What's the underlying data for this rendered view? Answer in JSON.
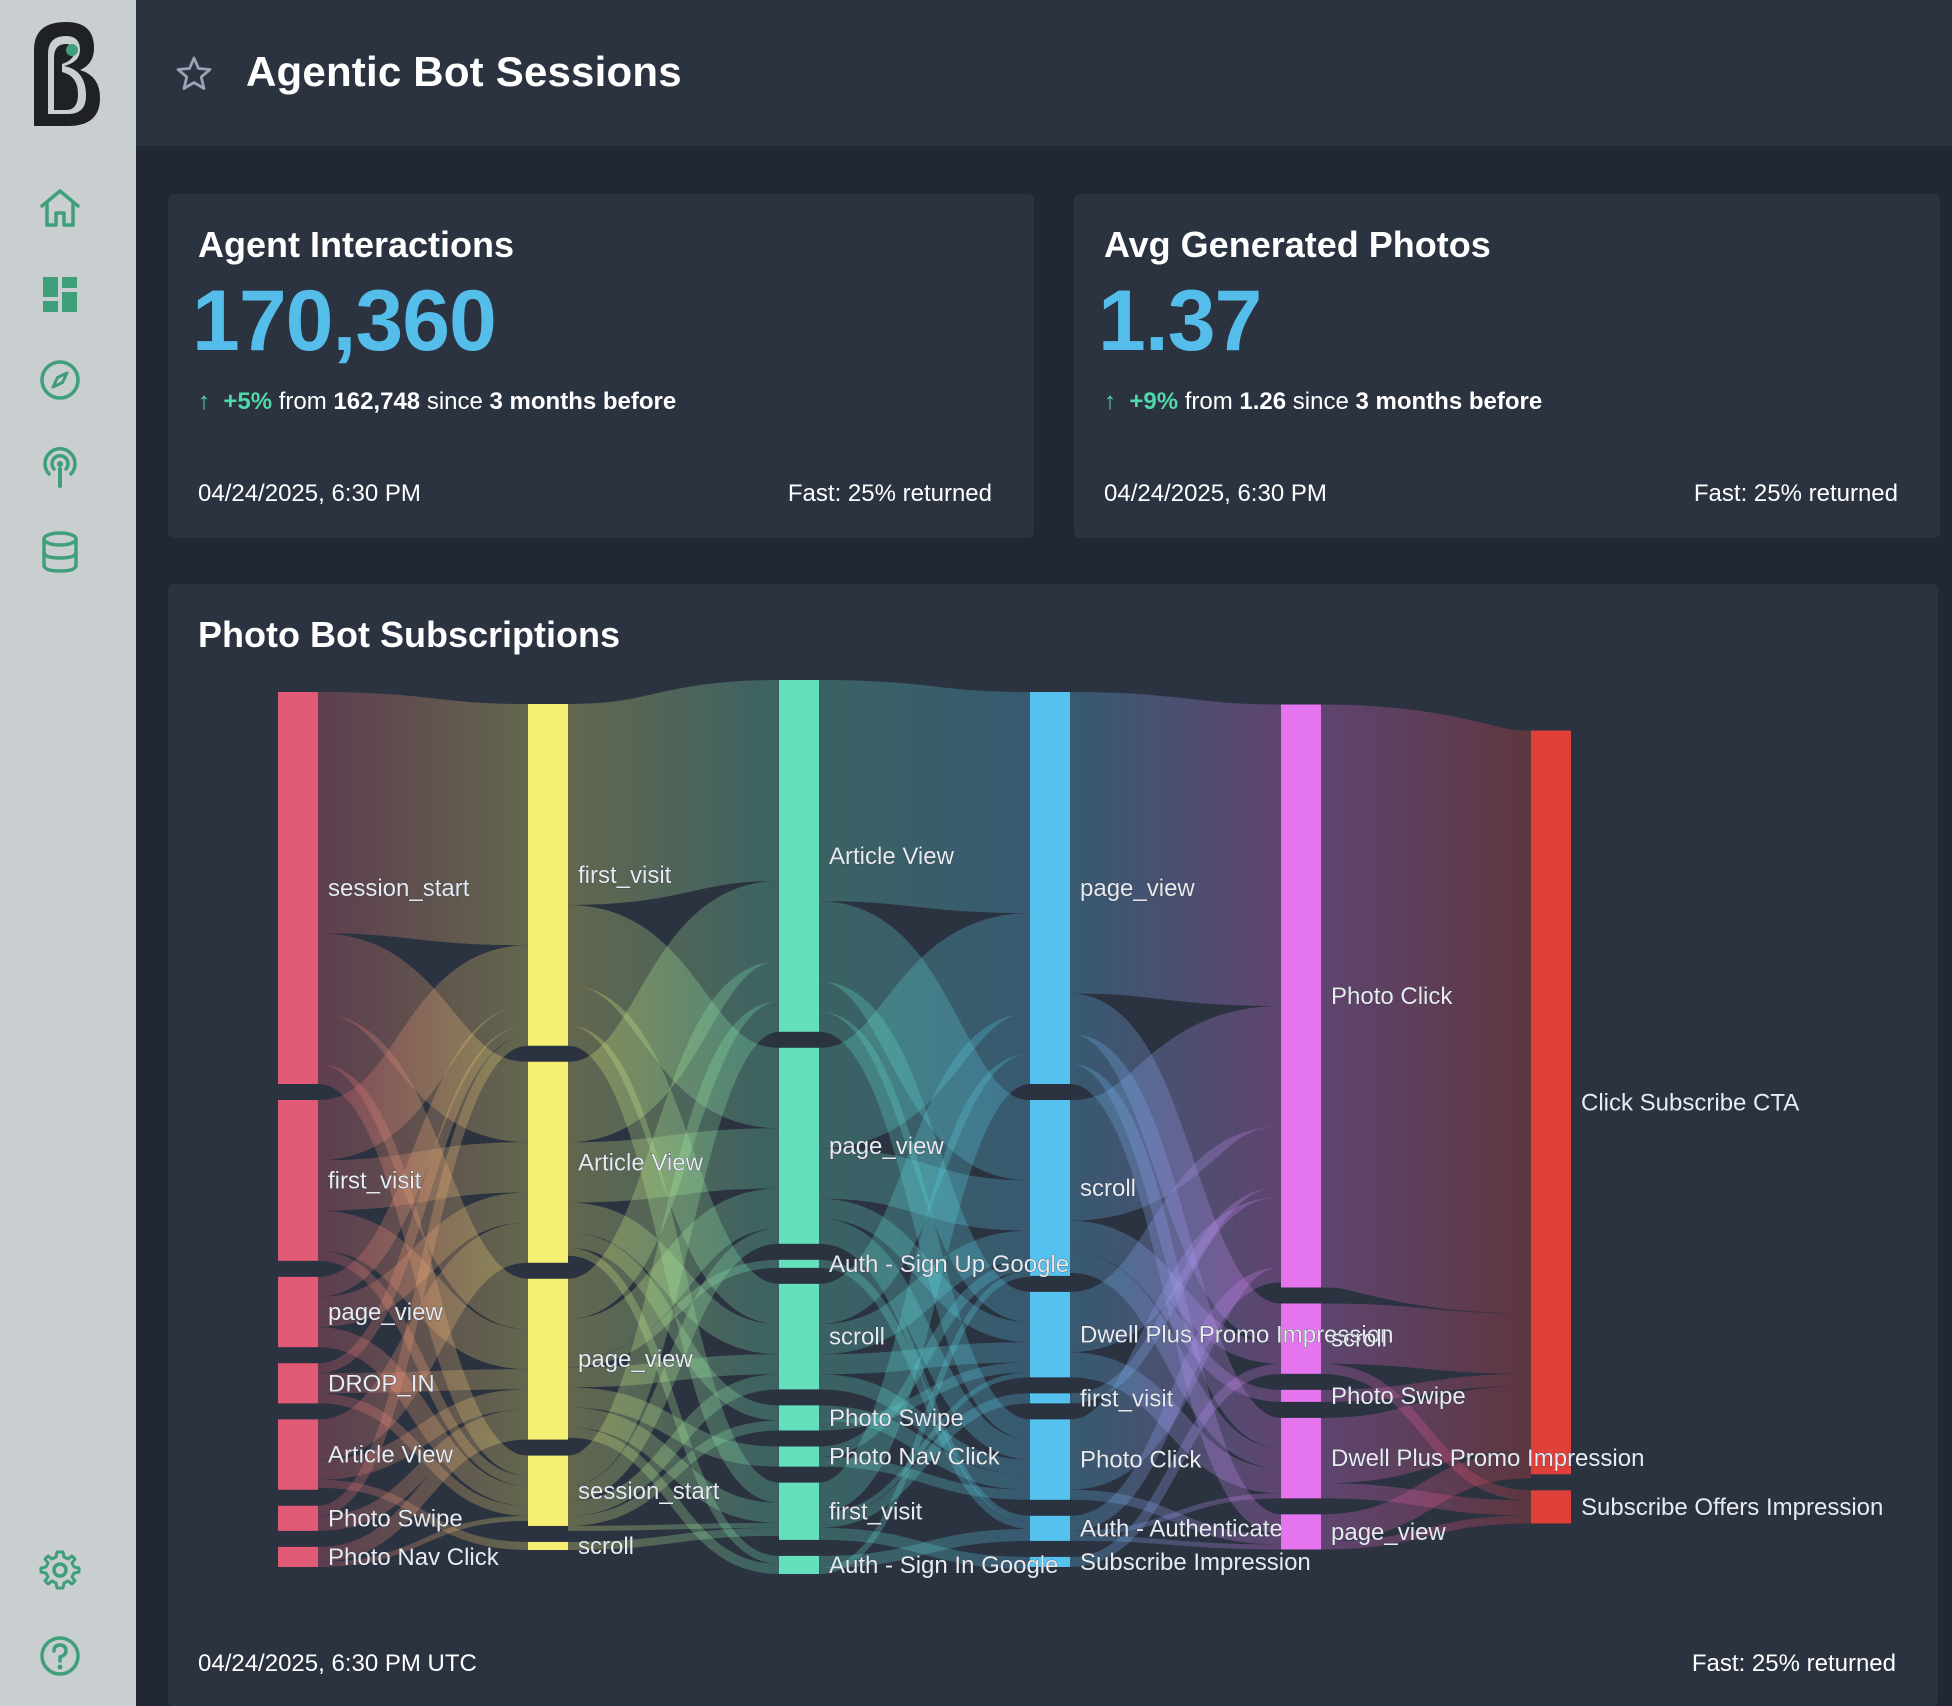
{
  "app": {
    "logo_icon": "brand-logo-icon"
  },
  "header": {
    "title": "Agentic Bot Sessions",
    "star_icon": "star-icon"
  },
  "sidebar": {
    "items": [
      {
        "icon": "home-icon"
      },
      {
        "icon": "dashboard-icon"
      },
      {
        "icon": "compass-icon"
      },
      {
        "icon": "podcast-icon"
      },
      {
        "icon": "database-icon"
      }
    ],
    "bottom": [
      {
        "icon": "gear-icon"
      },
      {
        "icon": "help-icon"
      }
    ]
  },
  "cards": [
    {
      "title": "Agent Interactions",
      "value": "170,360",
      "delta_arrow": "↑",
      "delta_pct": "+5%",
      "from_word": "from",
      "prev_value": "162,748",
      "since_word": "since",
      "period": "3 months before",
      "timestamp": "04/24/2025, 6:30 PM",
      "status": "Fast: 25% returned"
    },
    {
      "title": "Avg Generated Photos",
      "value": "1.37",
      "delta_arrow": "↑",
      "delta_pct": "+9%",
      "from_word": "from",
      "prev_value": "1.26",
      "since_word": "since",
      "period": "3 months before",
      "timestamp": "04/24/2025, 6:30 PM",
      "status": "Fast: 25% returned"
    }
  ],
  "sankey_card": {
    "title": "Photo Bot Subscriptions",
    "timestamp": "04/24/2025, 6:30 PM UTC",
    "status": "Fast: 25% returned"
  },
  "colors": {
    "accent": "#55bde9",
    "positive": "#4fd8a8",
    "sidebar_icon": "#3f9f7a",
    "background": "#212733",
    "panel": "#2b3240"
  },
  "chart_data": {
    "type": "sankey",
    "title": "Photo Bot Subscriptions",
    "columns": [
      [
        {
          "label": "session_start",
          "color": "#e05a76",
          "value": 39
        },
        {
          "label": "first_visit",
          "color": "#e05a76",
          "value": 16
        },
        {
          "label": "page_view",
          "color": "#e05a76",
          "value": 7
        },
        {
          "label": "DROP_IN",
          "color": "#e05a76",
          "value": 4
        },
        {
          "label": "Article View",
          "color": "#e05a76",
          "value": 7
        },
        {
          "label": "Photo Swipe",
          "color": "#e05a76",
          "value": 2.5
        },
        {
          "label": "Photo Nav Click",
          "color": "#e05a76",
          "value": 2
        }
      ],
      [
        {
          "label": "first_visit",
          "color": "#f4ef73",
          "value": 34
        },
        {
          "label": "Article View",
          "color": "#f4ef73",
          "value": 20
        },
        {
          "label": "page_view",
          "color": "#f4ef73",
          "value": 16
        },
        {
          "label": "session_start",
          "color": "#f4ef73",
          "value": 7
        },
        {
          "label": "scroll",
          "color": "#f4ef73",
          "value": 0.8
        }
      ],
      [
        {
          "label": "Article View",
          "color": "#64e0bd",
          "value": 35
        },
        {
          "label": "page_view",
          "color": "#64e0bd",
          "value": 19.5
        },
        {
          "label": "Auth - Sign Up Google",
          "color": "#64e0bd",
          "value": 0.8
        },
        {
          "label": "scroll",
          "color": "#64e0bd",
          "value": 10.5
        },
        {
          "label": "Photo Swipe",
          "color": "#64e0bd",
          "value": 2.5
        },
        {
          "label": "Photo Nav Click",
          "color": "#64e0bd",
          "value": 2
        },
        {
          "label": "first_visit",
          "color": "#64e0bd",
          "value": 5.7
        },
        {
          "label": "Auth - Sign In Google",
          "color": "#64e0bd",
          "value": 1.8
        }
      ],
      [
        {
          "label": "page_view",
          "color": "#55c1ee",
          "value": 39
        },
        {
          "label": "scroll",
          "color": "#55c1ee",
          "value": 17.5
        },
        {
          "label": "Dwell Plus Promo Impression",
          "color": "#55c1ee",
          "value": 8.5
        },
        {
          "label": "first_visit",
          "color": "#55c1ee",
          "value": 1
        },
        {
          "label": "Photo Click",
          "color": "#55c1ee",
          "value": 8
        },
        {
          "label": "Auth - Authenticate",
          "color": "#55c1ee",
          "value": 2.5
        },
        {
          "label": "Subscribe Impression",
          "color": "#55c1ee",
          "value": 1
        }
      ],
      [
        {
          "label": "Photo Click",
          "color": "#e575ee",
          "value": 58
        },
        {
          "label": "scroll",
          "color": "#e575ee",
          "value": 7
        },
        {
          "label": "Photo Swipe",
          "color": "#e575ee",
          "value": 1.2
        },
        {
          "label": "Dwell Plus Promo Impression",
          "color": "#e575ee",
          "value": 8
        },
        {
          "label": "page_view",
          "color": "#e575ee",
          "value": 3.5
        }
      ],
      [
        {
          "label": "Click Subscribe CTA",
          "color": "#e0403a",
          "value": 74
        },
        {
          "label": "Subscribe Offers Impression",
          "color": "#e0403a",
          "value": 3.3
        }
      ]
    ],
    "links": [
      [
        0,
        0,
        1,
        0,
        24
      ],
      [
        0,
        0,
        1,
        1,
        8
      ],
      [
        0,
        0,
        1,
        2,
        5
      ],
      [
        0,
        0,
        1,
        3,
        2
      ],
      [
        0,
        1,
        1,
        0,
        6
      ],
      [
        0,
        1,
        1,
        1,
        5
      ],
      [
        0,
        1,
        1,
        2,
        4
      ],
      [
        0,
        1,
        1,
        3,
        1
      ],
      [
        0,
        2,
        1,
        0,
        2
      ],
      [
        0,
        2,
        1,
        1,
        3
      ],
      [
        0,
        2,
        1,
        3,
        2
      ],
      [
        0,
        3,
        1,
        0,
        1
      ],
      [
        0,
        3,
        1,
        2,
        2
      ],
      [
        0,
        3,
        1,
        3,
        1
      ],
      [
        0,
        4,
        1,
        1,
        4
      ],
      [
        0,
        4,
        1,
        2,
        2
      ],
      [
        0,
        4,
        1,
        4,
        0.8
      ],
      [
        0,
        5,
        1,
        0,
        1
      ],
      [
        0,
        5,
        1,
        2,
        1.5
      ],
      [
        0,
        6,
        1,
        2,
        1.5
      ],
      [
        0,
        6,
        1,
        3,
        0.5
      ],
      [
        1,
        0,
        2,
        0,
        20
      ],
      [
        1,
        0,
        2,
        1,
        8
      ],
      [
        1,
        0,
        2,
        3,
        4
      ],
      [
        1,
        0,
        2,
        6,
        2
      ],
      [
        1,
        1,
        2,
        0,
        8
      ],
      [
        1,
        1,
        2,
        1,
        6
      ],
      [
        1,
        1,
        2,
        3,
        3
      ],
      [
        1,
        1,
        2,
        4,
        1.5
      ],
      [
        1,
        1,
        2,
        7,
        0.8
      ],
      [
        1,
        2,
        2,
        0,
        4
      ],
      [
        1,
        2,
        2,
        1,
        4
      ],
      [
        1,
        2,
        2,
        2,
        0.8
      ],
      [
        1,
        2,
        2,
        3,
        2
      ],
      [
        1,
        2,
        2,
        5,
        2
      ],
      [
        1,
        2,
        2,
        6,
        2
      ],
      [
        1,
        2,
        2,
        7,
        1
      ],
      [
        1,
        3,
        2,
        0,
        3
      ],
      [
        1,
        3,
        2,
        1,
        1.5
      ],
      [
        1,
        3,
        2,
        3,
        1.5
      ],
      [
        1,
        3,
        2,
        4,
        1
      ],
      [
        1,
        3,
        2,
        6,
        0.5
      ],
      [
        1,
        4,
        2,
        6,
        0.8
      ],
      [
        2,
        0,
        3,
        0,
        22
      ],
      [
        2,
        0,
        3,
        1,
        8
      ],
      [
        2,
        0,
        3,
        2,
        3
      ],
      [
        2,
        0,
        3,
        4,
        2
      ],
      [
        2,
        1,
        3,
        0,
        10
      ],
      [
        2,
        1,
        3,
        1,
        5
      ],
      [
        2,
        1,
        3,
        2,
        2
      ],
      [
        2,
        1,
        3,
        4,
        2
      ],
      [
        2,
        1,
        3,
        5,
        0.5
      ],
      [
        2,
        2,
        3,
        5,
        0.8
      ],
      [
        2,
        3,
        3,
        0,
        4
      ],
      [
        2,
        3,
        3,
        1,
        3
      ],
      [
        2,
        3,
        3,
        2,
        2
      ],
      [
        2,
        3,
        3,
        4,
        1.5
      ],
      [
        2,
        4,
        3,
        4,
        1.5
      ],
      [
        2,
        4,
        3,
        2,
        1
      ],
      [
        2,
        5,
        3,
        1,
        1
      ],
      [
        2,
        5,
        3,
        4,
        1
      ],
      [
        2,
        6,
        3,
        0,
        3
      ],
      [
        2,
        6,
        3,
        2,
        0.5
      ],
      [
        2,
        6,
        3,
        3,
        1
      ],
      [
        2,
        6,
        3,
        6,
        1.2
      ],
      [
        2,
        7,
        3,
        5,
        1.2
      ],
      [
        2,
        7,
        3,
        1,
        0.6
      ],
      [
        3,
        0,
        4,
        0,
        30
      ],
      [
        3,
        0,
        4,
        1,
        4
      ],
      [
        3,
        0,
        4,
        3,
        3
      ],
      [
        3,
        0,
        4,
        4,
        2
      ],
      [
        3,
        1,
        4,
        0,
        12
      ],
      [
        3,
        1,
        4,
        1,
        2
      ],
      [
        3,
        1,
        4,
        2,
        1.2
      ],
      [
        3,
        1,
        4,
        3,
        2
      ],
      [
        3,
        2,
        4,
        0,
        6
      ],
      [
        3,
        2,
        4,
        3,
        2.5
      ],
      [
        3,
        3,
        4,
        0,
        1
      ],
      [
        3,
        4,
        4,
        0,
        7
      ],
      [
        3,
        4,
        4,
        4,
        1
      ],
      [
        3,
        5,
        4,
        0,
        1.5
      ],
      [
        3,
        5,
        4,
        3,
        0.5
      ],
      [
        3,
        5,
        4,
        4,
        0.5
      ],
      [
        3,
        6,
        4,
        1,
        1
      ],
      [
        4,
        0,
        5,
        0,
        58
      ],
      [
        4,
        1,
        5,
        0,
        6
      ],
      [
        4,
        1,
        5,
        1,
        1
      ],
      [
        4,
        2,
        5,
        0,
        1.2
      ],
      [
        4,
        3,
        5,
        0,
        6.5
      ],
      [
        4,
        3,
        5,
        1,
        1.5
      ],
      [
        4,
        4,
        5,
        0,
        2.7
      ],
      [
        4,
        4,
        5,
        1,
        0.8
      ]
    ]
  }
}
